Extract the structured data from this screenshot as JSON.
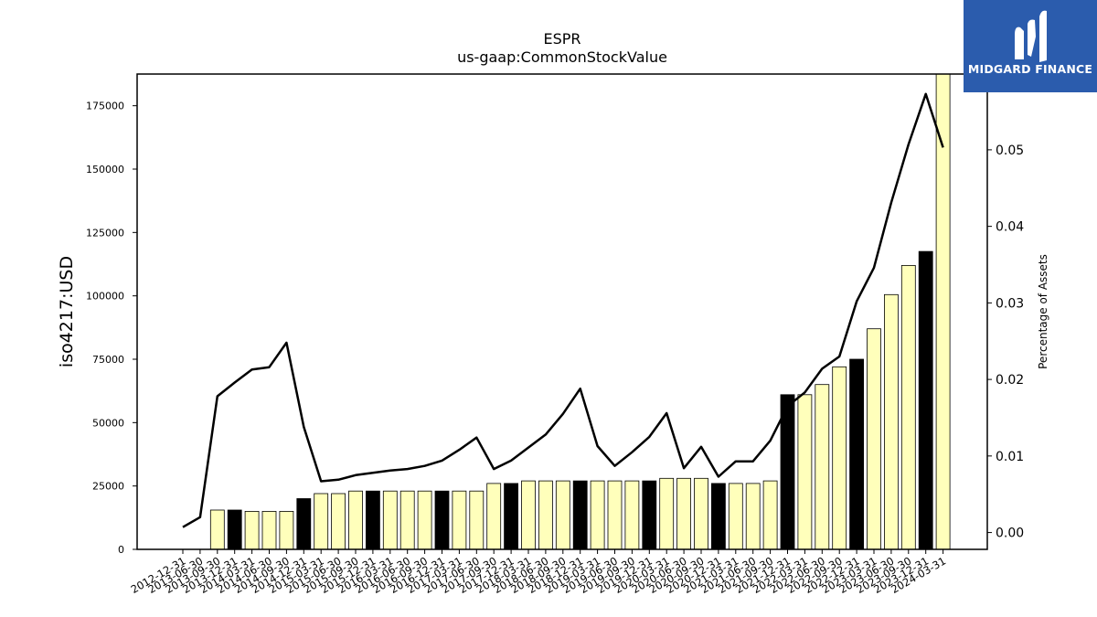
{
  "chart_data": {
    "type": "bar",
    "title": "ESPR",
    "subtitle": "us-gaap:CommonStockValue",
    "ylabel": "iso4217:USD",
    "y2label": "Percentage of Assets",
    "ylim": [
      0,
      187500
    ],
    "y2lim": [
      -0.0022,
      0.0599
    ],
    "yticks": [
      0,
      25000,
      50000,
      75000,
      100000,
      125000,
      150000,
      175000
    ],
    "y2ticks": [
      "0.00",
      "0.01",
      "0.02",
      "0.03",
      "0.04",
      "0.05"
    ],
    "categories": [
      "2012-12-31",
      "2013-06-30",
      "2013-09-30",
      "2013-12-31",
      "2014-03-31",
      "2014-06-30",
      "2014-09-30",
      "2014-12-31",
      "2015-03-31",
      "2015-06-30",
      "2015-09-30",
      "2015-12-31",
      "2016-03-31",
      "2016-06-30",
      "2016-09-30",
      "2016-12-31",
      "2017-03-31",
      "2017-06-30",
      "2017-09-30",
      "2017-12-31",
      "2018-03-31",
      "2018-06-30",
      "2018-09-30",
      "2018-12-31",
      "2019-03-31",
      "2019-06-30",
      "2019-09-30",
      "2019-12-31",
      "2020-03-31",
      "2020-06-30",
      "2020-09-30",
      "2020-12-31",
      "2021-03-31",
      "2021-06-30",
      "2021-09-30",
      "2021-12-31",
      "2022-03-31",
      "2022-06-30",
      "2022-09-30",
      "2022-12-31",
      "2023-03-31",
      "2023-06-30",
      "2023-09-30",
      "2023-12-31",
      "2024-03-31"
    ],
    "values": [
      0,
      0,
      15500,
      15500,
      15000,
      15000,
      15000,
      20000,
      22000,
      22000,
      23000,
      23000,
      23000,
      23000,
      23000,
      23000,
      23000,
      23000,
      26000,
      26000,
      27000,
      27000,
      27000,
      27000,
      27000,
      27000,
      27000,
      27000,
      28000,
      28000,
      28000,
      26000,
      26000,
      26000,
      27000,
      61000,
      61000,
      65000,
      72000,
      75000,
      87000,
      100500,
      112000,
      117500,
      188000
    ],
    "highlight": [
      false,
      false,
      false,
      true,
      false,
      false,
      false,
      true,
      false,
      false,
      false,
      true,
      false,
      false,
      false,
      true,
      false,
      false,
      false,
      true,
      false,
      false,
      false,
      true,
      false,
      false,
      false,
      true,
      false,
      false,
      false,
      true,
      false,
      false,
      false,
      true,
      false,
      false,
      false,
      true,
      false,
      false,
      false,
      true,
      false
    ],
    "pct_of_assets": [
      0.0007,
      0.002,
      0.0178,
      0.0196,
      0.0213,
      0.0216,
      0.0248,
      0.0138,
      0.0067,
      0.0069,
      0.0075,
      0.0078,
      0.0081,
      0.0083,
      0.0087,
      0.0094,
      0.0108,
      0.0124,
      0.0083,
      0.0094,
      0.0111,
      0.0128,
      0.0155,
      0.0188,
      0.0113,
      0.0087,
      0.0105,
      0.0125,
      0.0156,
      0.0084,
      0.0112,
      0.0073,
      0.0093,
      0.0093,
      0.012,
      0.0165,
      0.0183,
      0.0214,
      0.023,
      0.0302,
      0.0346,
      0.0431,
      0.0507,
      0.0573,
      0.0503
    ],
    "colors": {
      "bar": "#ffffbb",
      "bar_highlight": "#000000",
      "bar_edge": "#000000",
      "line": "#000000"
    },
    "grid": false,
    "legend": "none"
  },
  "logo": {
    "text": "MIDGARD FINANCE",
    "bg": "#2b5cad",
    "icon": "midgard-m-logo"
  }
}
